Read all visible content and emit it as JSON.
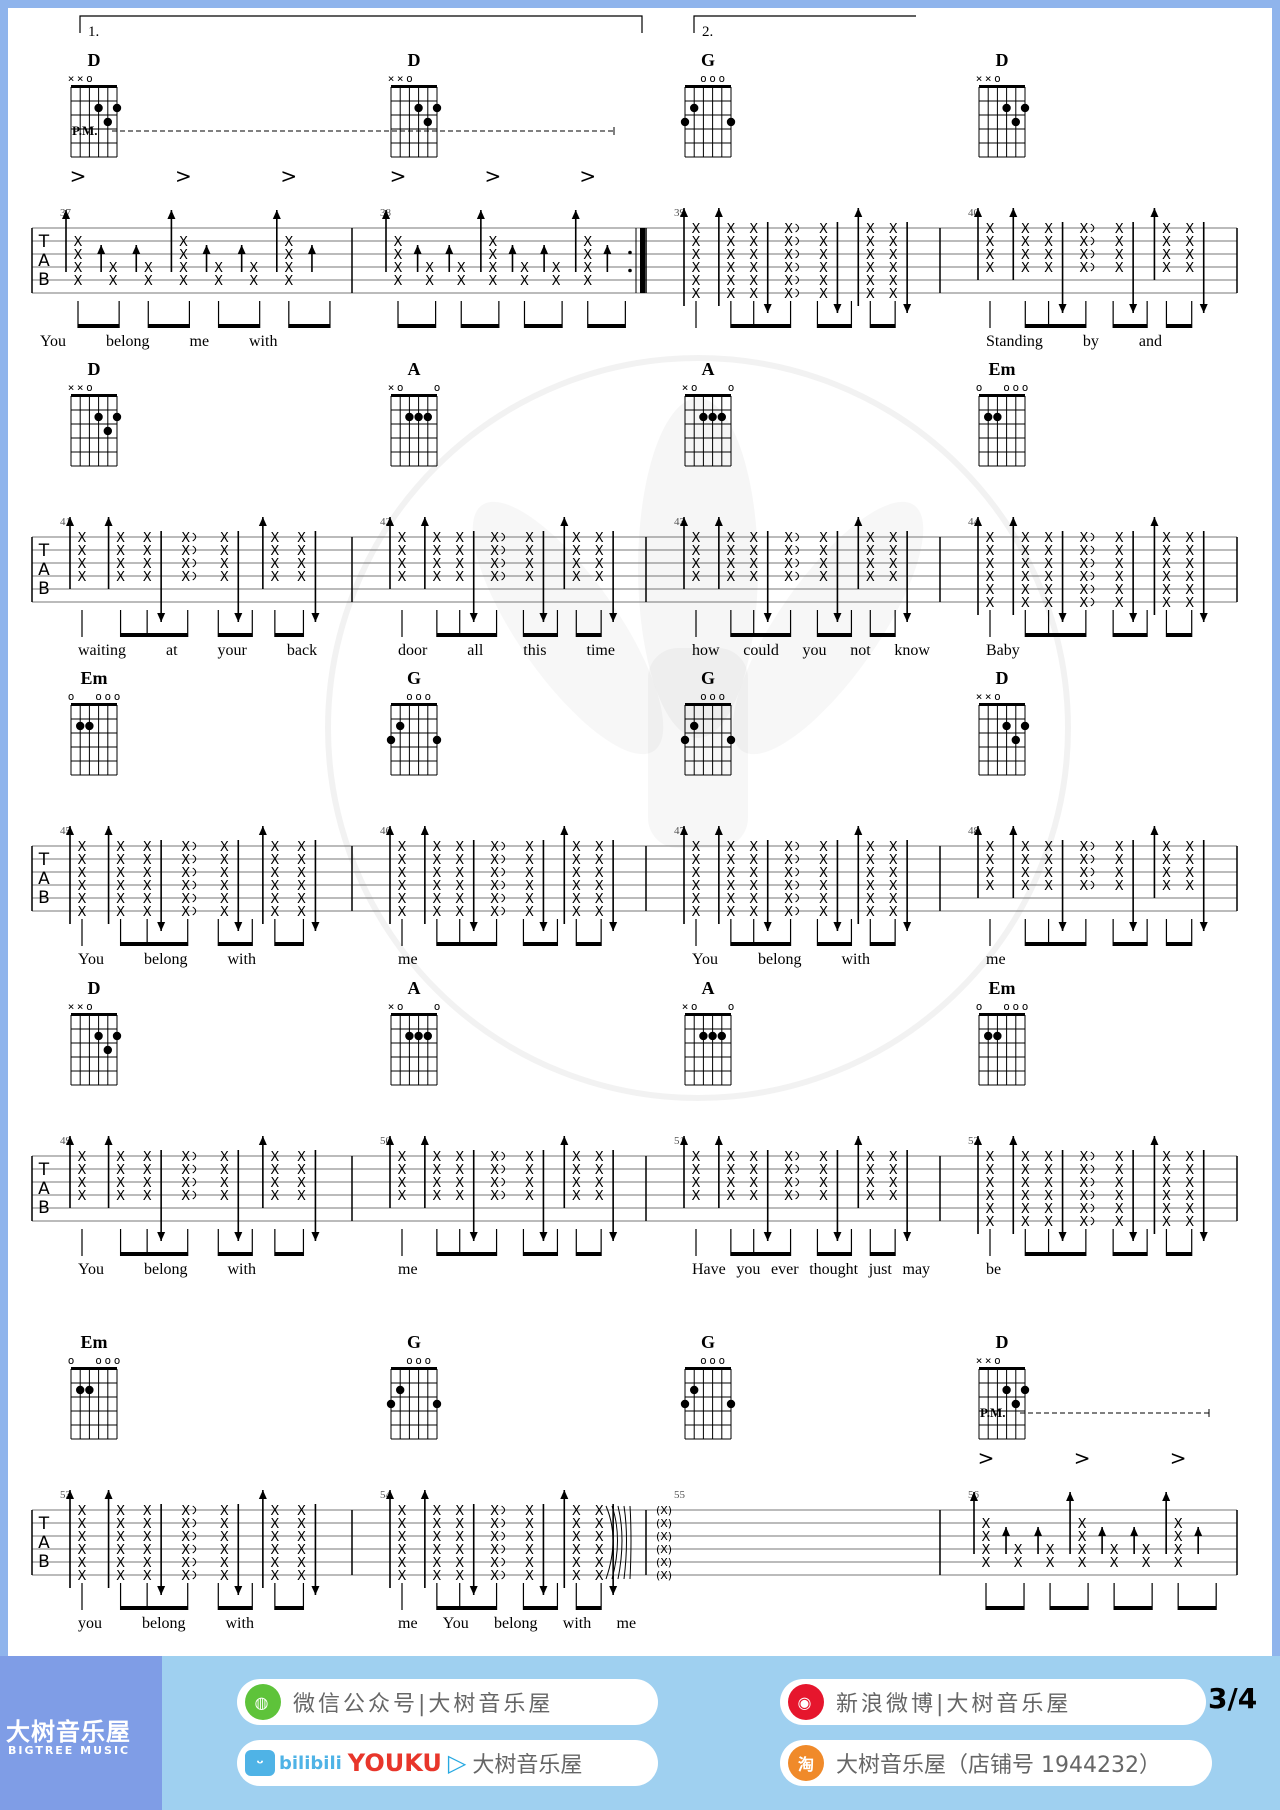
{
  "colors": {
    "page_border": "#8fb4ec",
    "footer_bg": "#9fd0f0",
    "brand_bg": "#7f9de6",
    "bilibili": "#4fb3e6",
    "youku_red": "#e8362b",
    "youku_blue": "#27a9e1",
    "wechat": "#5ec33a",
    "weibo": "#e6162d",
    "taobao": "#f08a2a"
  },
  "chords": {
    "D": {
      "name": "D",
      "open": "××o",
      "frets": [
        "x",
        "x",
        0,
        2,
        3,
        2
      ]
    },
    "A": {
      "name": "A",
      "open": "×o   o",
      "frets": [
        "x",
        0,
        2,
        2,
        2,
        0
      ]
    },
    "Em": {
      "name": "Em",
      "open": "o  ooo",
      "frets": [
        0,
        2,
        2,
        0,
        0,
        0
      ]
    },
    "G": {
      "name": "G",
      "open": "ooo",
      "frets": [
        3,
        2,
        0,
        0,
        0,
        3
      ]
    }
  },
  "systems": [
    {
      "measures": [
        {
          "number": "37",
          "chord": "D",
          "pattern": "pm",
          "volta": "1.",
          "lyrics": [
            "You",
            "belong",
            "me",
            "with"
          ]
        },
        {
          "number": "38",
          "chord": "D",
          "pattern": "pm",
          "lyrics": []
        },
        {
          "number": "39",
          "chord": "G",
          "pattern": "full",
          "volta": "2.",
          "lyrics": []
        },
        {
          "number": "40",
          "chord": "D",
          "pattern": "strum",
          "lyrics": [
            "Standing",
            "by",
            "and"
          ]
        }
      ],
      "pm": "P.M."
    },
    {
      "measures": [
        {
          "number": "41",
          "chord": "D",
          "pattern": "strum",
          "lyrics": [
            "waiting",
            "at",
            "your",
            "back"
          ]
        },
        {
          "number": "42",
          "chord": "A",
          "pattern": "strum",
          "lyrics": [
            "door",
            "all",
            "this",
            "time"
          ]
        },
        {
          "number": "43",
          "chord": "A",
          "pattern": "strum",
          "lyrics": [
            "how",
            "could",
            "you",
            "not",
            "know"
          ]
        },
        {
          "number": "44",
          "chord": "Em",
          "pattern": "full",
          "lyrics": [
            "Baby"
          ]
        }
      ]
    },
    {
      "measures": [
        {
          "number": "45",
          "chord": "Em",
          "pattern": "full",
          "lyrics": [
            "You",
            "belong",
            "with"
          ]
        },
        {
          "number": "46",
          "chord": "G",
          "pattern": "full",
          "lyrics": [
            "me"
          ]
        },
        {
          "number": "47",
          "chord": "G",
          "pattern": "full",
          "lyrics": [
            "You",
            "belong",
            "with"
          ]
        },
        {
          "number": "48",
          "chord": "D",
          "pattern": "strum",
          "lyrics": [
            "me"
          ]
        }
      ]
    },
    {
      "measures": [
        {
          "number": "49",
          "chord": "D",
          "pattern": "strum",
          "lyrics": [
            "You",
            "belong",
            "with"
          ]
        },
        {
          "number": "50",
          "chord": "A",
          "pattern": "strum",
          "lyrics": [
            "me"
          ]
        },
        {
          "number": "51",
          "chord": "A",
          "pattern": "strum",
          "lyrics": [
            "Have",
            "you",
            "ever",
            "thought",
            "just",
            "may"
          ]
        },
        {
          "number": "52",
          "chord": "Em",
          "pattern": "full",
          "lyrics": [
            "be"
          ]
        }
      ]
    },
    {
      "measures": [
        {
          "number": "53",
          "chord": "Em",
          "pattern": "full",
          "lyrics": [
            "you",
            "belong",
            "with"
          ]
        },
        {
          "number": "54",
          "chord": "G",
          "pattern": "full",
          "lyrics": [
            "me",
            "You",
            "belong",
            "with",
            "me"
          ]
        },
        {
          "number": "55",
          "chord": "G",
          "pattern": "arpeggio",
          "note": "(X)",
          "lyrics": []
        },
        {
          "number": "56",
          "chord": "D",
          "pattern": "pm",
          "lyrics": []
        }
      ],
      "pm": "P.M."
    }
  ],
  "tab_clef": [
    "T",
    "A",
    "B"
  ],
  "accent": ">",
  "footer": {
    "brand_cn": "大树音乐屋",
    "brand_en": "BIGTREE MUSIC",
    "wechat": "微信公众号|大树音乐屋",
    "weibo": "新浪微博|大树音乐屋",
    "bilibili": "bilibili",
    "youku": "YOUKU",
    "video": "大树音乐屋",
    "taobao_icon": "淘",
    "taobao": "大树音乐屋（店铺号 1944232）",
    "page": "3/4"
  },
  "watermark": "大树音乐屋 BIGTREE MUSIC"
}
